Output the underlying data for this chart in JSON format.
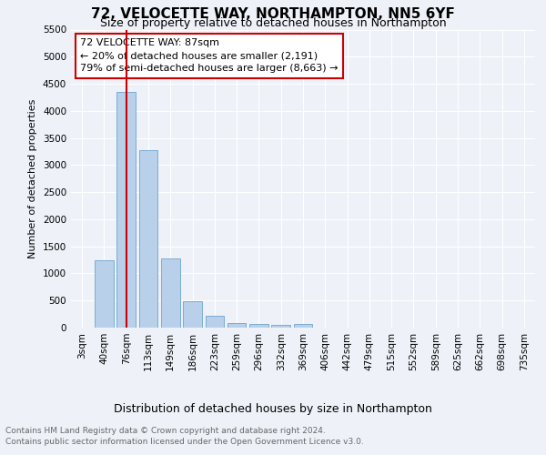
{
  "title": "72, VELOCETTE WAY, NORTHAMPTON, NN5 6YF",
  "subtitle": "Size of property relative to detached houses in Northampton",
  "xlabel": "Distribution of detached houses by size in Northampton",
  "ylabel": "Number of detached properties",
  "footnote1": "Contains HM Land Registry data © Crown copyright and database right 2024.",
  "footnote2": "Contains public sector information licensed under the Open Government Licence v3.0.",
  "categories": [
    "3sqm",
    "40sqm",
    "76sqm",
    "113sqm",
    "149sqm",
    "186sqm",
    "223sqm",
    "259sqm",
    "296sqm",
    "332sqm",
    "369sqm",
    "406sqm",
    "442sqm",
    "479sqm",
    "515sqm",
    "552sqm",
    "589sqm",
    "625sqm",
    "662sqm",
    "698sqm",
    "735sqm"
  ],
  "values": [
    0,
    1250,
    4350,
    3280,
    1280,
    490,
    215,
    90,
    75,
    50,
    60,
    0,
    0,
    0,
    0,
    0,
    0,
    0,
    0,
    0,
    0
  ],
  "bar_color": "#b8d0ea",
  "bar_edge_color": "#7aadd4",
  "vline_x_index": 2,
  "vline_color": "#cc0000",
  "annotation_line1": "72 VELOCETTE WAY: 87sqm",
  "annotation_line2": "← 20% of detached houses are smaller (2,191)",
  "annotation_line3": "79% of semi-detached houses are larger (8,663) →",
  "annotation_box_color": "#cc0000",
  "ylim": [
    0,
    5500
  ],
  "yticks": [
    0,
    500,
    1000,
    1500,
    2000,
    2500,
    3000,
    3500,
    4000,
    4500,
    5000,
    5500
  ],
  "bg_color": "#eef2f8",
  "title_fontsize": 11,
  "subtitle_fontsize": 9,
  "xlabel_fontsize": 9,
  "ylabel_fontsize": 8,
  "tick_fontsize": 7.5,
  "annotation_fontsize": 8,
  "footnote_fontsize": 6.5
}
